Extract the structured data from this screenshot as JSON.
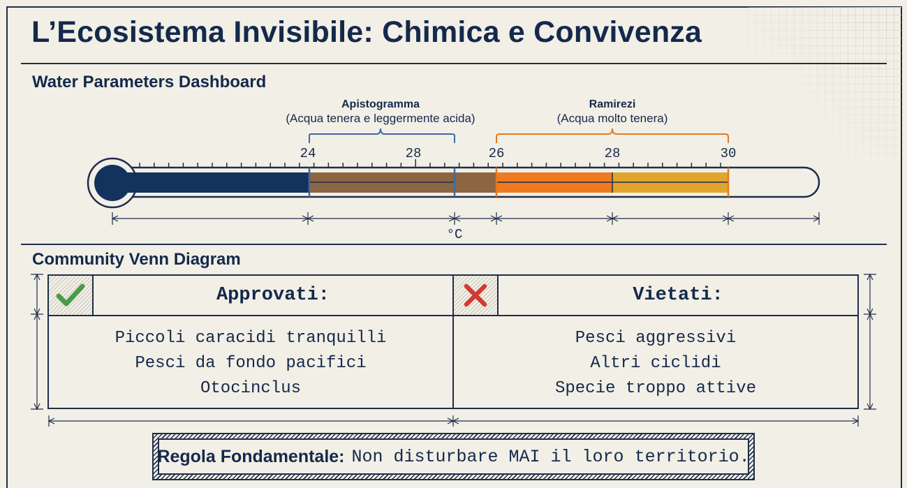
{
  "title": "L’Ecosistema Invisibile: Chimica e Convivenza",
  "dashboard": {
    "heading": "Water Parameters Dashboard",
    "unit": "°C",
    "ranges": [
      {
        "name": "Apistogramma",
        "note": "(Acqua tenera e leggermente acida)",
        "start_label": "24",
        "mid_label": "28",
        "color": "#3d6aa6"
      },
      {
        "name": "Ramirezi",
        "note": "(Acqua molto tenera)",
        "start_label": "26",
        "mid_label": "28",
        "end_label": "30",
        "color": "#e07b22"
      }
    ],
    "colors": {
      "navy": "#14325e",
      "brown": "#8c6642",
      "orange": "#ee7a22",
      "amber": "#e2a52c"
    }
  },
  "community": {
    "heading": "Community Venn Diagram",
    "approved": {
      "title": "Approvati:",
      "icon": "check-icon",
      "items": [
        "Piccoli caracidi tranquilli",
        "Pesci da fondo pacifici",
        "Otocinclus"
      ]
    },
    "forbidden": {
      "title": "Vietati:",
      "icon": "cross-icon",
      "items": [
        "Pesci aggressivi",
        "Altri ciclidi",
        "Specie troppo attive"
      ]
    }
  },
  "rule": {
    "label": "Regola Fondamentale:",
    "text": "Non disturbare MAI il loro territorio."
  }
}
